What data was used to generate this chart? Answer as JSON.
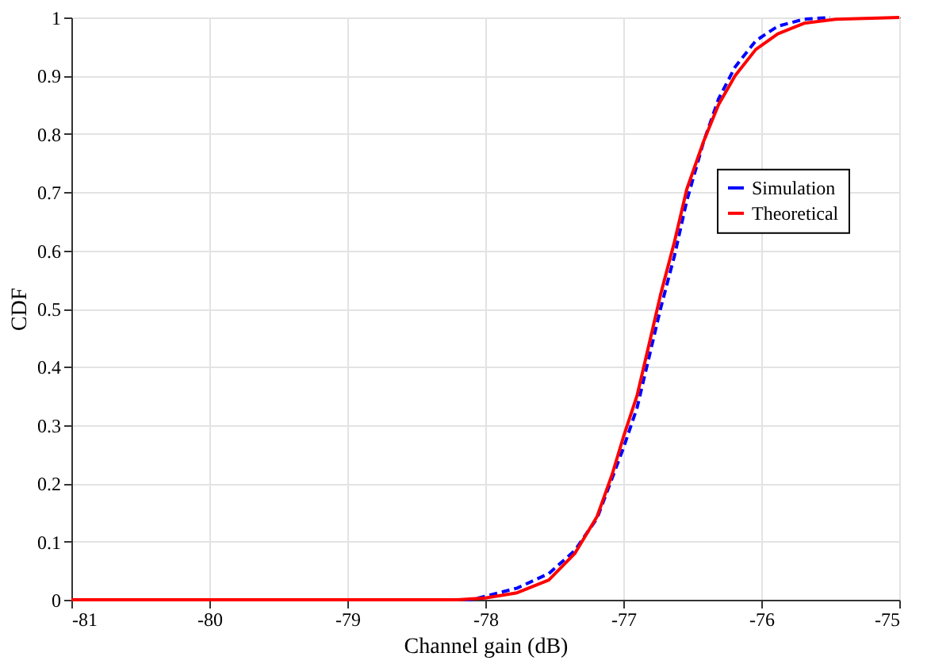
{
  "chart_data": {
    "type": "line",
    "xlabel": "Channel gain (dB)",
    "ylabel": "CDF",
    "xlim": [
      -81,
      -75
    ],
    "xticks": [
      -81,
      -80,
      -79,
      -78,
      -77,
      -76,
      -75
    ],
    "ylim": [
      0,
      1
    ],
    "yticks": [
      0,
      0.1,
      0.2,
      0.3,
      0.4,
      0.5,
      0.6,
      0.7,
      0.8,
      0.9,
      1
    ],
    "grid": true,
    "legend": "right",
    "series": [
      {
        "name": "Simulation",
        "color": "#0000ff",
        "line_style": "dashed",
        "x": [
          -81,
          -78.1,
          -78,
          -77.77,
          -77.54,
          -77.35,
          -77.19,
          -77.0,
          -76.9,
          -76.81,
          -76.73,
          -76.63,
          -76.54,
          -76.42,
          -76.31,
          -76.19,
          -76.04,
          -75.88,
          -75.69,
          -75.5
        ],
        "values": [
          0,
          0,
          0.006,
          0.02,
          0.045,
          0.085,
          0.14,
          0.26,
          0.33,
          0.42,
          0.5,
          0.59,
          0.685,
          0.785,
          0.86,
          0.915,
          0.96,
          0.985,
          0.997,
          1
        ]
      },
      {
        "name": "Theoretical",
        "color": "#ff0000",
        "line_style": "solid",
        "x": [
          -81,
          -78.2,
          -78,
          -77.77,
          -77.54,
          -77.35,
          -77.19,
          -77.08,
          -77.0,
          -76.9,
          -76.81,
          -76.73,
          -76.63,
          -76.54,
          -76.42,
          -76.31,
          -76.19,
          -76.04,
          -75.88,
          -75.69,
          -75.46,
          -75
        ],
        "values": [
          0,
          0,
          0.003,
          0.012,
          0.034,
          0.08,
          0.143,
          0.216,
          0.279,
          0.351,
          0.442,
          0.524,
          0.614,
          0.705,
          0.786,
          0.85,
          0.9,
          0.945,
          0.972,
          0.99,
          0.997,
          1
        ]
      }
    ]
  }
}
